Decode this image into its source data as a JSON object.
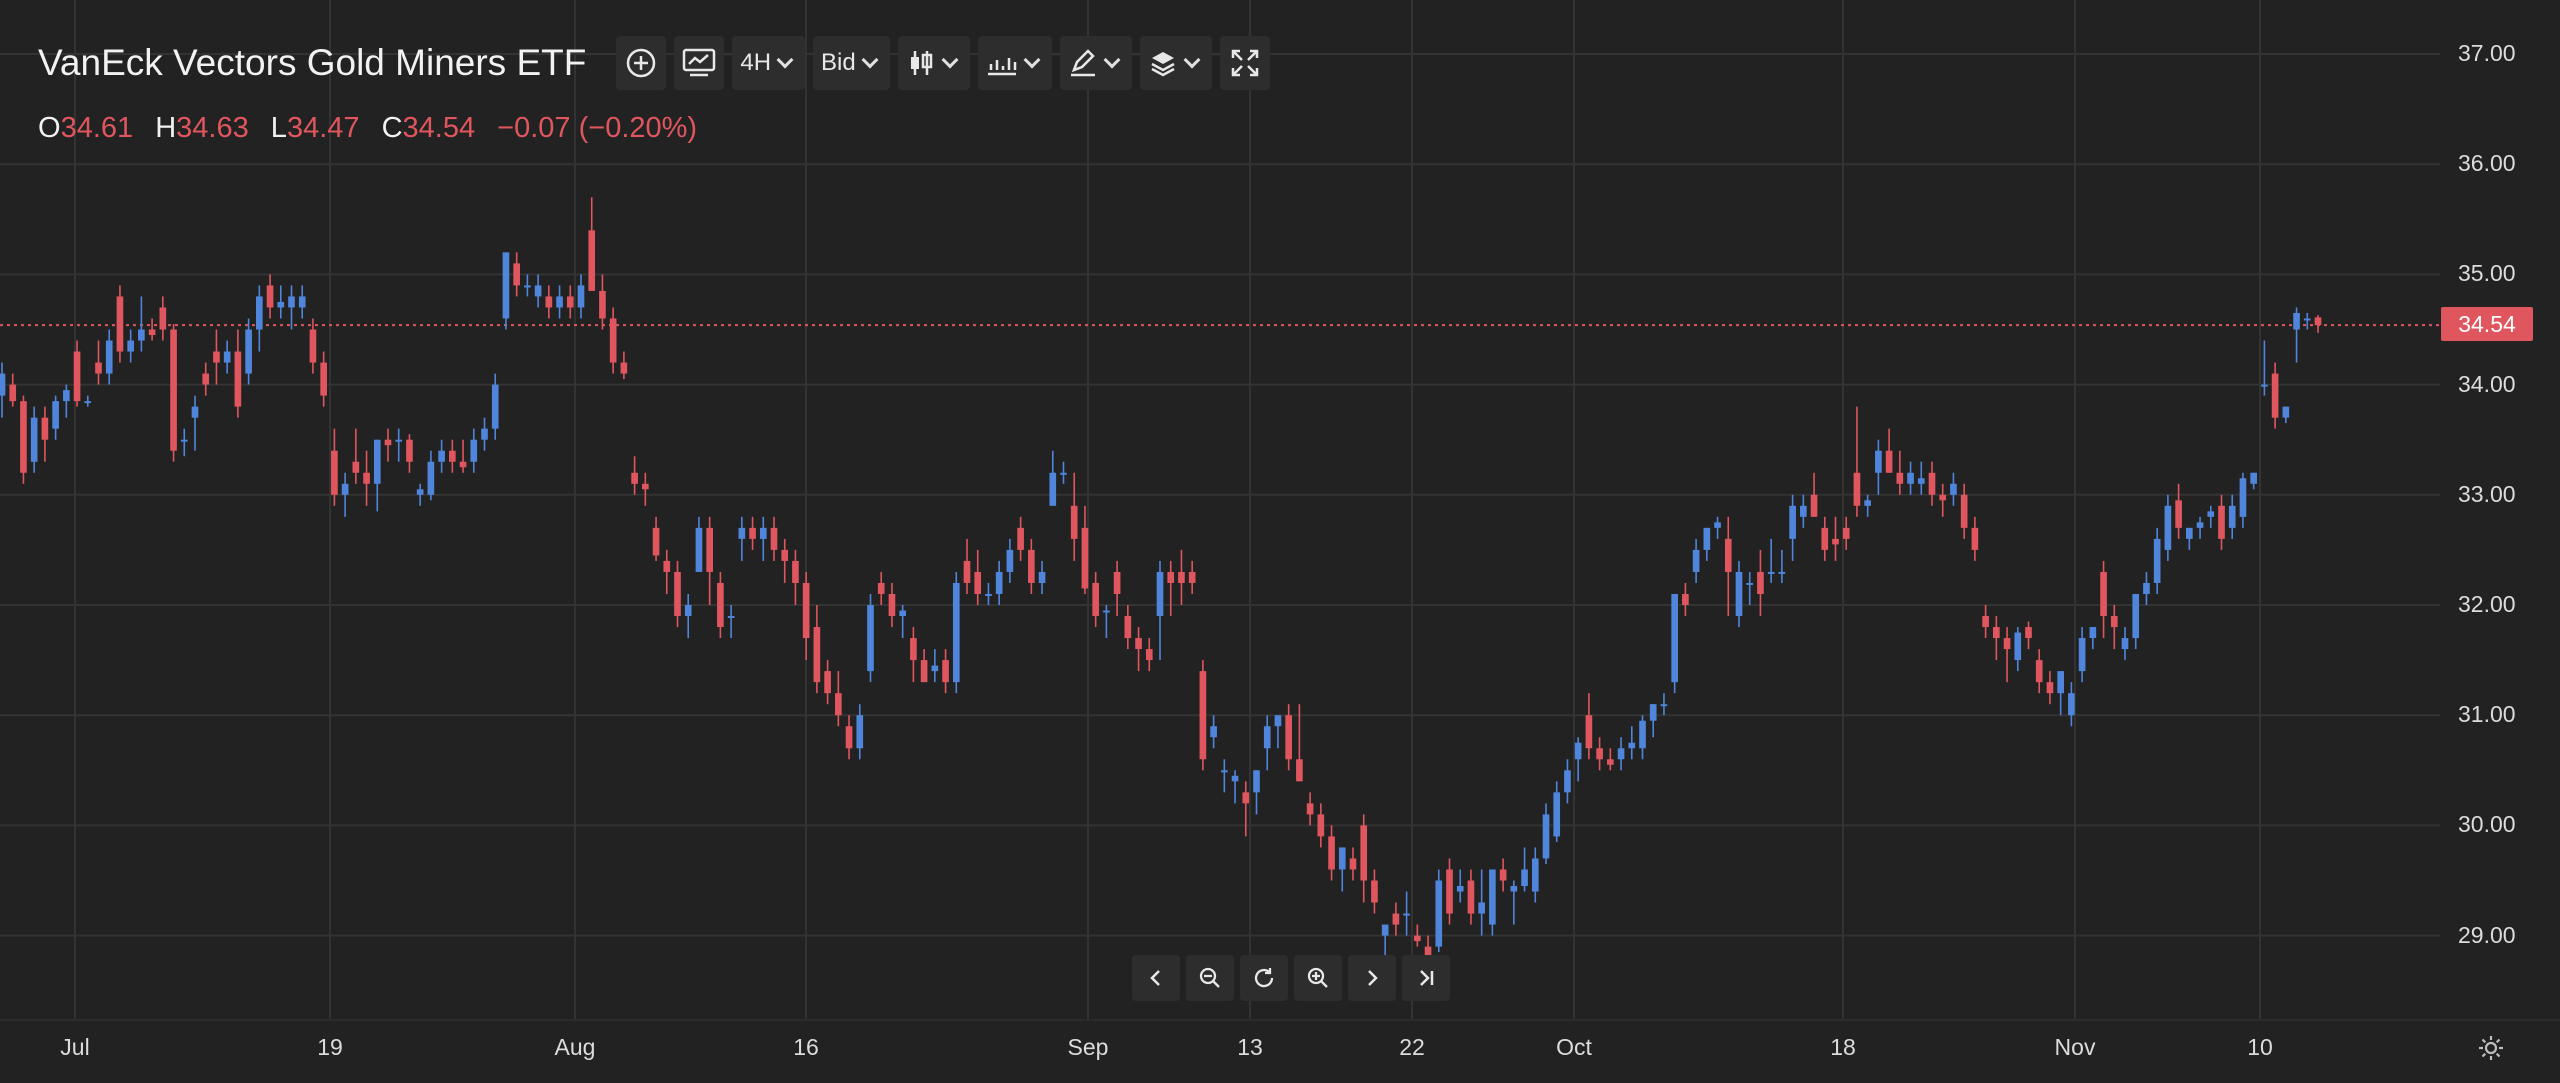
{
  "chart_title": "VanEck Vectors Gold Miners ETF",
  "toolbar": {
    "interval_label": "4H",
    "price_type_label": "Bid"
  },
  "ohlc": {
    "open_key": "O",
    "open": "34.61",
    "high_key": "H",
    "high": "34.63",
    "low_key": "L",
    "low": "34.47",
    "close_key": "C",
    "close": "34.54",
    "change": "−0.07 (−0.20%)"
  },
  "last_price_label": "34.54",
  "colors": {
    "up": "#4f86dc",
    "down": "#e0565e",
    "background": "#222222",
    "grid": "#333333"
  },
  "icons": [
    "plus-circle-icon",
    "indicator-chart-icon",
    "candle-type-icon",
    "chart-style-icon",
    "drawing-tools-icon",
    "layers-icon",
    "fullscreen-icon",
    "scroll-left-icon",
    "zoom-out-icon",
    "reset-icon",
    "zoom-in-icon",
    "scroll-right-icon",
    "go-to-latest-icon",
    "settings-icon"
  ],
  "chart_data": {
    "type": "candlestick",
    "title": "VanEck Vectors Gold Miners ETF",
    "ylim": [
      28.5,
      37.1
    ],
    "y_ticks": [
      "37.00",
      "36.00",
      "35.00",
      "34.00",
      "33.00",
      "32.00",
      "31.00",
      "30.00",
      "29.00"
    ],
    "y_tick_values": [
      37,
      36,
      35,
      34,
      33,
      32,
      31,
      30,
      29
    ],
    "x_tick_labels": [
      "Jul",
      "19",
      "Aug",
      "16",
      "Sep",
      "13",
      "22",
      "Oct",
      "18",
      "Nov",
      "10"
    ],
    "x_tick_dates": [
      "2021-07-01",
      "2021-07-19",
      "2021-08-02",
      "2021-08-16",
      "2021-09-01",
      "2021-09-13",
      "2021-09-22",
      "2021-10-01",
      "2021-10-18",
      "2021-11-01",
      "2021-11-10"
    ],
    "grid": true,
    "last_price": 34.54,
    "candles_ohlc": [
      [
        33.9,
        34.2,
        33.7,
        34.1
      ],
      [
        34.0,
        34.1,
        33.8,
        33.85
      ],
      [
        33.85,
        33.9,
        33.1,
        33.2
      ],
      [
        33.3,
        33.8,
        33.2,
        33.7
      ],
      [
        33.7,
        33.8,
        33.3,
        33.5
      ],
      [
        33.6,
        33.9,
        33.5,
        33.85
      ],
      [
        33.85,
        34.0,
        33.7,
        33.95
      ],
      [
        34.3,
        34.4,
        33.8,
        33.85
      ],
      [
        33.85,
        33.9,
        33.8,
        33.85
      ],
      [
        34.2,
        34.4,
        34.0,
        34.1
      ],
      [
        34.1,
        34.5,
        34.0,
        34.4
      ],
      [
        34.8,
        34.9,
        34.2,
        34.3
      ],
      [
        34.3,
        34.5,
        34.2,
        34.4
      ],
      [
        34.4,
        34.8,
        34.3,
        34.5
      ],
      [
        34.5,
        34.6,
        34.4,
        34.45
      ],
      [
        34.7,
        34.8,
        34.4,
        34.5
      ],
      [
        34.5,
        34.55,
        33.3,
        33.4
      ],
      [
        33.5,
        33.6,
        33.35,
        33.5
      ],
      [
        33.7,
        33.9,
        33.4,
        33.8
      ],
      [
        34.1,
        34.2,
        33.9,
        34.0
      ],
      [
        34.3,
        34.5,
        34.0,
        34.2
      ],
      [
        34.2,
        34.4,
        34.1,
        34.3
      ],
      [
        34.3,
        34.5,
        33.7,
        33.8
      ],
      [
        34.1,
        34.6,
        34.0,
        34.5
      ],
      [
        34.5,
        34.9,
        34.3,
        34.8
      ],
      [
        34.9,
        35.0,
        34.6,
        34.7
      ],
      [
        34.7,
        34.9,
        34.6,
        34.75
      ],
      [
        34.7,
        34.9,
        34.5,
        34.8
      ],
      [
        34.7,
        34.9,
        34.6,
        34.8
      ],
      [
        34.5,
        34.6,
        34.1,
        34.2
      ],
      [
        34.2,
        34.3,
        33.8,
        33.9
      ],
      [
        33.4,
        33.6,
        32.9,
        33.0
      ],
      [
        33.0,
        33.2,
        32.8,
        33.1
      ],
      [
        33.3,
        33.6,
        33.1,
        33.2
      ],
      [
        33.2,
        33.4,
        32.9,
        33.1
      ],
      [
        33.1,
        33.5,
        32.85,
        33.5
      ],
      [
        33.5,
        33.6,
        33.3,
        33.45
      ],
      [
        33.5,
        33.6,
        33.3,
        33.5
      ],
      [
        33.5,
        33.55,
        33.2,
        33.3
      ],
      [
        33.0,
        33.1,
        32.9,
        33.05
      ],
      [
        33.0,
        33.4,
        32.95,
        33.3
      ],
      [
        33.3,
        33.5,
        33.2,
        33.4
      ],
      [
        33.4,
        33.5,
        33.2,
        33.3
      ],
      [
        33.3,
        33.5,
        33.2,
        33.25
      ],
      [
        33.3,
        33.6,
        33.2,
        33.5
      ],
      [
        33.5,
        33.7,
        33.4,
        33.6
      ],
      [
        33.6,
        34.1,
        33.5,
        34.0
      ],
      [
        34.6,
        35.2,
        34.5,
        35.2
      ],
      [
        35.1,
        35.2,
        34.8,
        34.9
      ],
      [
        34.9,
        35.0,
        34.8,
        34.9
      ],
      [
        34.8,
        35.0,
        34.7,
        34.9
      ],
      [
        34.8,
        34.9,
        34.6,
        34.7
      ],
      [
        34.7,
        34.9,
        34.6,
        34.8
      ],
      [
        34.8,
        34.9,
        34.6,
        34.7
      ],
      [
        34.7,
        35.0,
        34.6,
        34.9
      ],
      [
        35.4,
        35.7,
        35.0,
        34.85
      ],
      [
        34.85,
        35.0,
        34.5,
        34.6
      ],
      [
        34.6,
        34.7,
        34.1,
        34.2
      ],
      [
        34.2,
        34.3,
        34.05,
        34.1
      ],
      [
        33.2,
        33.35,
        33.0,
        33.1
      ],
      [
        33.1,
        33.2,
        32.9,
        33.05
      ],
      [
        32.7,
        32.8,
        32.4,
        32.45
      ],
      [
        32.4,
        32.5,
        32.1,
        32.3
      ],
      [
        32.3,
        32.4,
        31.8,
        31.9
      ],
      [
        31.9,
        32.1,
        31.7,
        32.0
      ],
      [
        32.3,
        32.8,
        32.3,
        32.7
      ],
      [
        32.7,
        32.8,
        32.0,
        32.3
      ],
      [
        32.2,
        32.3,
        31.7,
        31.8
      ],
      [
        31.9,
        32.0,
        31.7,
        31.9
      ],
      [
        32.6,
        32.8,
        32.4,
        32.7
      ],
      [
        32.7,
        32.8,
        32.5,
        32.6
      ],
      [
        32.6,
        32.8,
        32.4,
        32.7
      ],
      [
        32.7,
        32.8,
        32.4,
        32.5
      ],
      [
        32.5,
        32.6,
        32.2,
        32.4
      ],
      [
        32.4,
        32.5,
        32.0,
        32.2
      ],
      [
        32.2,
        32.3,
        31.5,
        31.7
      ],
      [
        31.8,
        32.0,
        31.2,
        31.3
      ],
      [
        31.4,
        31.5,
        31.1,
        31.2
      ],
      [
        31.2,
        31.4,
        30.9,
        31.0
      ],
      [
        30.9,
        31.0,
        30.6,
        30.7
      ],
      [
        30.7,
        31.1,
        30.6,
        31.0
      ],
      [
        31.4,
        32.1,
        31.3,
        32.0
      ],
      [
        32.2,
        32.3,
        32.0,
        32.1
      ],
      [
        32.1,
        32.2,
        31.8,
        31.9
      ],
      [
        31.9,
        32.0,
        31.7,
        31.95
      ],
      [
        31.7,
        31.8,
        31.3,
        31.5
      ],
      [
        31.5,
        31.6,
        31.3,
        31.3
      ],
      [
        31.4,
        31.6,
        31.3,
        31.45
      ],
      [
        31.5,
        31.6,
        31.2,
        31.3
      ],
      [
        31.3,
        32.3,
        31.2,
        32.2
      ],
      [
        32.4,
        32.6,
        32.1,
        32.2
      ],
      [
        32.3,
        32.5,
        32.0,
        32.1
      ],
      [
        32.1,
        32.2,
        32.0,
        32.1
      ],
      [
        32.1,
        32.4,
        32.0,
        32.3
      ],
      [
        32.3,
        32.6,
        32.2,
        32.5
      ],
      [
        32.7,
        32.8,
        32.4,
        32.5
      ],
      [
        32.5,
        32.6,
        32.1,
        32.2
      ],
      [
        32.2,
        32.4,
        32.1,
        32.3
      ],
      [
        32.9,
        33.4,
        32.9,
        33.2
      ],
      [
        33.2,
        33.3,
        33.1,
        33.2
      ],
      [
        32.9,
        33.2,
        32.4,
        32.6
      ],
      [
        32.7,
        32.9,
        32.1,
        32.15
      ],
      [
        32.2,
        32.3,
        31.8,
        31.9
      ],
      [
        31.95,
        32.0,
        31.7,
        31.95
      ],
      [
        32.3,
        32.4,
        31.9,
        32.1
      ],
      [
        31.9,
        32.0,
        31.6,
        31.7
      ],
      [
        31.7,
        31.8,
        31.4,
        31.6
      ],
      [
        31.6,
        31.7,
        31.4,
        31.5
      ],
      [
        31.9,
        32.4,
        31.5,
        32.3
      ],
      [
        32.3,
        32.4,
        31.9,
        32.2
      ],
      [
        32.3,
        32.5,
        32.0,
        32.2
      ],
      [
        32.3,
        32.4,
        32.1,
        32.2
      ],
      [
        31.4,
        31.5,
        30.5,
        30.6
      ],
      [
        30.8,
        31.0,
        30.7,
        30.9
      ],
      [
        30.5,
        30.6,
        30.3,
        30.5
      ],
      [
        30.4,
        30.5,
        30.2,
        30.45
      ],
      [
        30.3,
        30.4,
        29.9,
        30.2
      ],
      [
        30.3,
        30.5,
        30.1,
        30.5
      ],
      [
        30.7,
        31.0,
        30.5,
        30.9
      ],
      [
        30.9,
        31.0,
        30.7,
        31.0
      ],
      [
        31.0,
        31.1,
        30.5,
        30.6
      ],
      [
        30.6,
        31.1,
        30.4,
        30.4
      ],
      [
        30.2,
        30.3,
        30.0,
        30.1
      ],
      [
        30.1,
        30.2,
        29.8,
        29.9
      ],
      [
        29.9,
        30.0,
        29.5,
        29.6
      ],
      [
        29.6,
        29.8,
        29.4,
        29.8
      ],
      [
        29.7,
        29.8,
        29.5,
        29.6
      ],
      [
        30.0,
        30.1,
        29.3,
        29.5
      ],
      [
        29.5,
        29.6,
        29.2,
        29.3
      ],
      [
        29.0,
        29.1,
        28.8,
        29.1
      ],
      [
        29.2,
        29.3,
        29.0,
        29.1
      ],
      [
        29.2,
        29.4,
        29.0,
        29.2
      ],
      [
        29.0,
        29.1,
        28.9,
        28.95
      ],
      [
        28.9,
        29.0,
        28.7,
        28.8
      ],
      [
        28.9,
        29.6,
        28.85,
        29.5
      ],
      [
        29.6,
        29.7,
        29.1,
        29.2
      ],
      [
        29.4,
        29.6,
        29.3,
        29.45
      ],
      [
        29.5,
        29.6,
        29.1,
        29.2
      ],
      [
        29.2,
        29.6,
        29.0,
        29.3
      ],
      [
        29.1,
        29.6,
        29.0,
        29.6
      ],
      [
        29.6,
        29.7,
        29.4,
        29.5
      ],
      [
        29.4,
        29.5,
        29.1,
        29.45
      ],
      [
        29.45,
        29.8,
        29.4,
        29.6
      ],
      [
        29.4,
        29.8,
        29.3,
        29.7
      ],
      [
        29.7,
        30.2,
        29.65,
        30.1
      ],
      [
        29.9,
        30.4,
        29.85,
        30.3
      ],
      [
        30.3,
        30.6,
        30.2,
        30.5
      ],
      [
        30.6,
        30.8,
        30.4,
        30.75
      ],
      [
        31.0,
        31.2,
        30.6,
        30.7
      ],
      [
        30.7,
        30.8,
        30.5,
        30.6
      ],
      [
        30.6,
        30.7,
        30.5,
        30.55
      ],
      [
        30.6,
        30.8,
        30.5,
        30.7
      ],
      [
        30.7,
        30.9,
        30.6,
        30.75
      ],
      [
        30.7,
        31.0,
        30.6,
        30.95
      ],
      [
        30.95,
        31.1,
        30.8,
        31.1
      ],
      [
        31.1,
        31.2,
        31.0,
        31.1
      ],
      [
        31.3,
        32.1,
        31.2,
        32.1
      ],
      [
        32.1,
        32.2,
        31.9,
        32.0
      ],
      [
        32.3,
        32.6,
        32.2,
        32.5
      ],
      [
        32.5,
        32.7,
        32.4,
        32.7
      ],
      [
        32.7,
        32.8,
        32.6,
        32.75
      ],
      [
        32.6,
        32.8,
        31.9,
        32.3
      ],
      [
        31.9,
        32.4,
        31.8,
        32.3
      ],
      [
        32.2,
        32.3,
        32.0,
        32.2
      ],
      [
        32.3,
        32.5,
        31.9,
        32.1
      ],
      [
        32.3,
        32.6,
        32.2,
        32.3
      ],
      [
        32.3,
        32.5,
        32.2,
        32.3
      ],
      [
        32.6,
        33.0,
        32.4,
        32.9
      ],
      [
        32.8,
        33.0,
        32.7,
        32.9
      ],
      [
        33.0,
        33.2,
        32.8,
        32.8
      ],
      [
        32.7,
        32.8,
        32.4,
        32.5
      ],
      [
        32.6,
        32.8,
        32.4,
        32.55
      ],
      [
        32.7,
        32.8,
        32.5,
        32.6
      ],
      [
        33.2,
        33.8,
        32.8,
        32.9
      ],
      [
        32.9,
        33.0,
        32.8,
        32.95
      ],
      [
        33.2,
        33.5,
        33.0,
        33.4
      ],
      [
        33.4,
        33.6,
        33.2,
        33.2
      ],
      [
        33.2,
        33.4,
        33.0,
        33.1
      ],
      [
        33.1,
        33.3,
        33.0,
        33.2
      ],
      [
        33.1,
        33.3,
        33.0,
        33.15
      ],
      [
        33.2,
        33.3,
        32.9,
        33.0
      ],
      [
        33.0,
        33.1,
        32.8,
        32.95
      ],
      [
        33.0,
        33.2,
        32.9,
        33.1
      ],
      [
        33.0,
        33.1,
        32.6,
        32.7
      ],
      [
        32.7,
        32.8,
        32.4,
        32.5
      ],
      [
        31.9,
        32.0,
        31.7,
        31.8
      ],
      [
        31.8,
        31.9,
        31.5,
        31.7
      ],
      [
        31.7,
        31.8,
        31.3,
        31.6
      ],
      [
        31.5,
        31.8,
        31.4,
        31.75
      ],
      [
        31.8,
        31.85,
        31.6,
        31.7
      ],
      [
        31.5,
        31.6,
        31.2,
        31.3
      ],
      [
        31.3,
        31.4,
        31.1,
        31.2
      ],
      [
        31.2,
        31.4,
        31.0,
        31.4
      ],
      [
        31.0,
        31.3,
        30.9,
        31.2
      ],
      [
        31.4,
        31.8,
        31.3,
        31.7
      ],
      [
        31.7,
        31.8,
        31.6,
        31.8
      ],
      [
        32.3,
        32.4,
        31.7,
        31.9
      ],
      [
        31.9,
        32.0,
        31.6,
        31.8
      ],
      [
        31.6,
        31.8,
        31.5,
        31.7
      ],
      [
        31.7,
        32.1,
        31.6,
        32.1
      ],
      [
        32.1,
        32.3,
        32.0,
        32.2
      ],
      [
        32.2,
        32.7,
        32.1,
        32.6
      ],
      [
        32.5,
        33.0,
        32.4,
        32.9
      ],
      [
        32.95,
        33.1,
        32.6,
        32.7
      ],
      [
        32.6,
        32.7,
        32.5,
        32.7
      ],
      [
        32.7,
        32.8,
        32.6,
        32.75
      ],
      [
        32.8,
        32.9,
        32.7,
        32.85
      ],
      [
        32.9,
        33.0,
        32.5,
        32.6
      ],
      [
        32.7,
        33.0,
        32.6,
        32.9
      ],
      [
        32.8,
        33.2,
        32.7,
        33.15
      ],
      [
        33.1,
        33.2,
        33.05,
        33.2
      ],
      [
        34.0,
        34.4,
        33.9,
        34.0
      ],
      [
        34.1,
        34.2,
        33.6,
        33.7
      ],
      [
        33.7,
        33.8,
        33.65,
        33.8
      ],
      [
        34.5,
        34.7,
        34.2,
        34.65
      ],
      [
        34.6,
        34.65,
        34.5,
        34.6
      ],
      [
        34.61,
        34.63,
        34.47,
        34.54
      ]
    ]
  }
}
